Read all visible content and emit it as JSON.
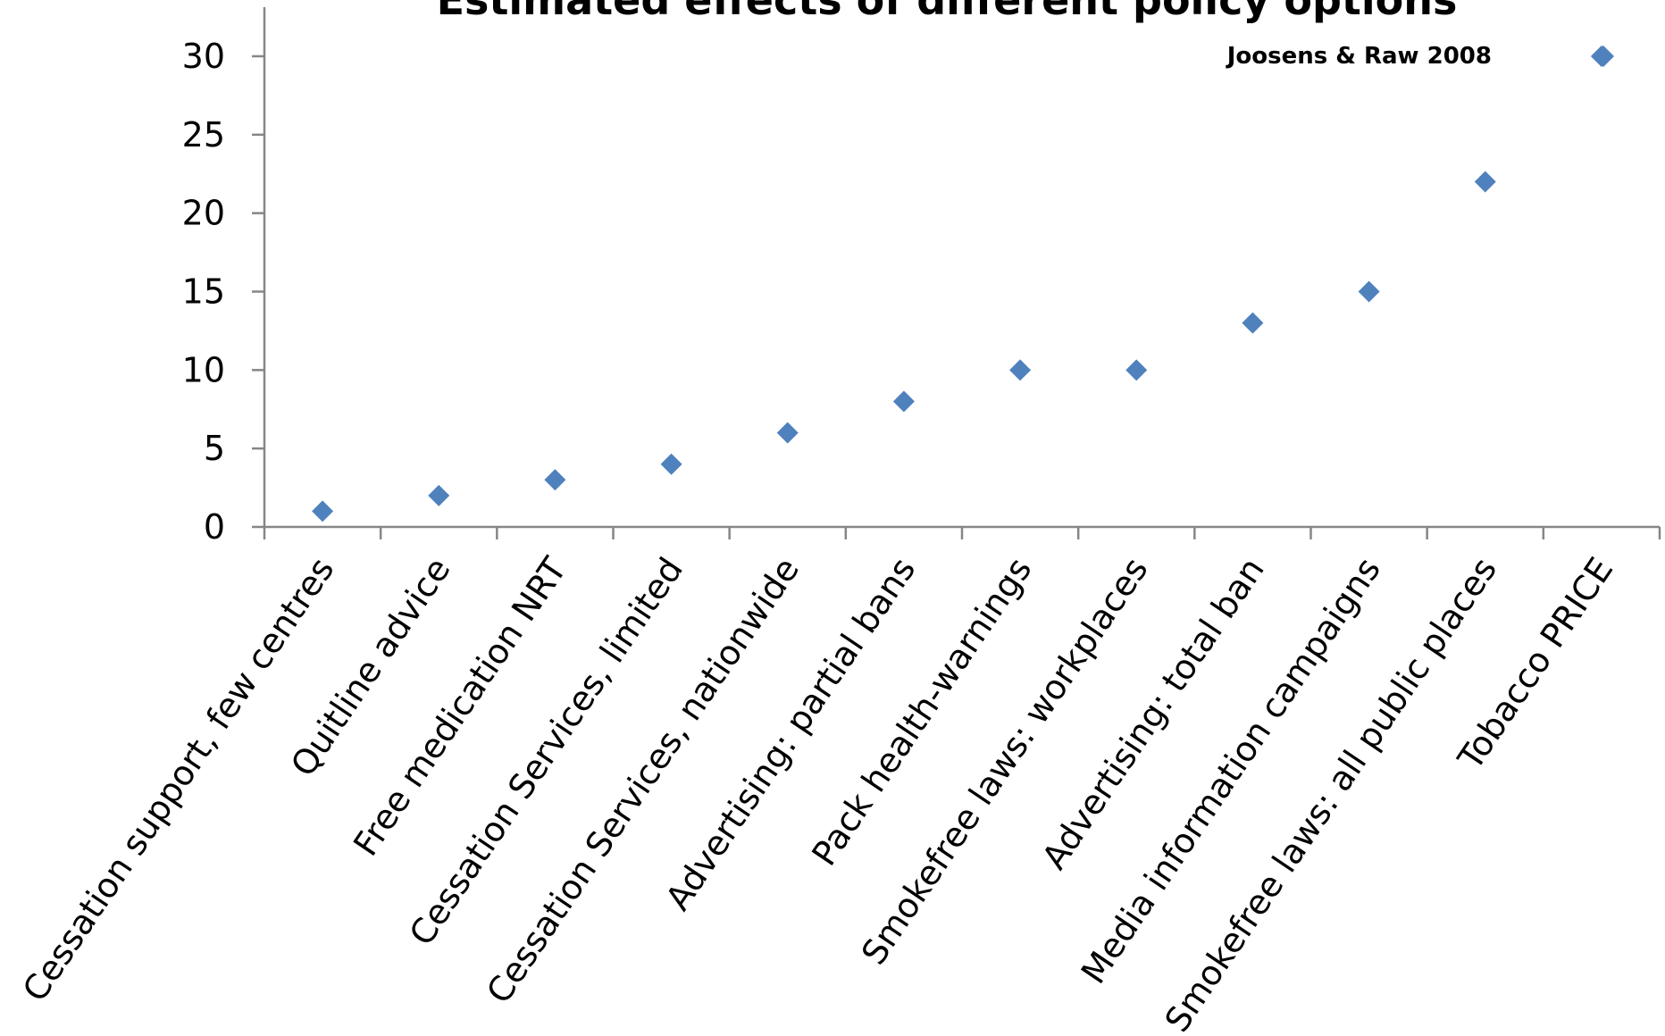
{
  "chart_data": {
    "type": "scatter",
    "title": "Estimated effects of different policy options",
    "xlabel": "",
    "ylabel": "",
    "categories": [
      "Cessation support, few centres",
      "Quitline advice",
      "Free medication NRT",
      "Cessation Services, limited",
      "Cessation Services, nationwide",
      "Advertising: partial bans",
      "Pack health-warnings",
      "Smokefree laws: workplaces",
      "Advertising: total ban",
      "Media information campaigns",
      "Smokefree laws: all public places",
      "Tobacco PRICE"
    ],
    "series": [
      {
        "name": "Joosens & Raw 2008",
        "values": [
          1,
          2,
          3,
          4,
          6,
          8,
          10,
          10,
          13,
          15,
          22,
          30
        ]
      }
    ],
    "ylim": [
      0,
      30
    ],
    "yticks": [
      0,
      5,
      10,
      15,
      20,
      25,
      30
    ],
    "grid": false,
    "legend_position": "top-right",
    "marker": "diamond",
    "colors": {
      "marker": "#4F81BD",
      "axis": "#868686",
      "text": "#000000"
    }
  }
}
